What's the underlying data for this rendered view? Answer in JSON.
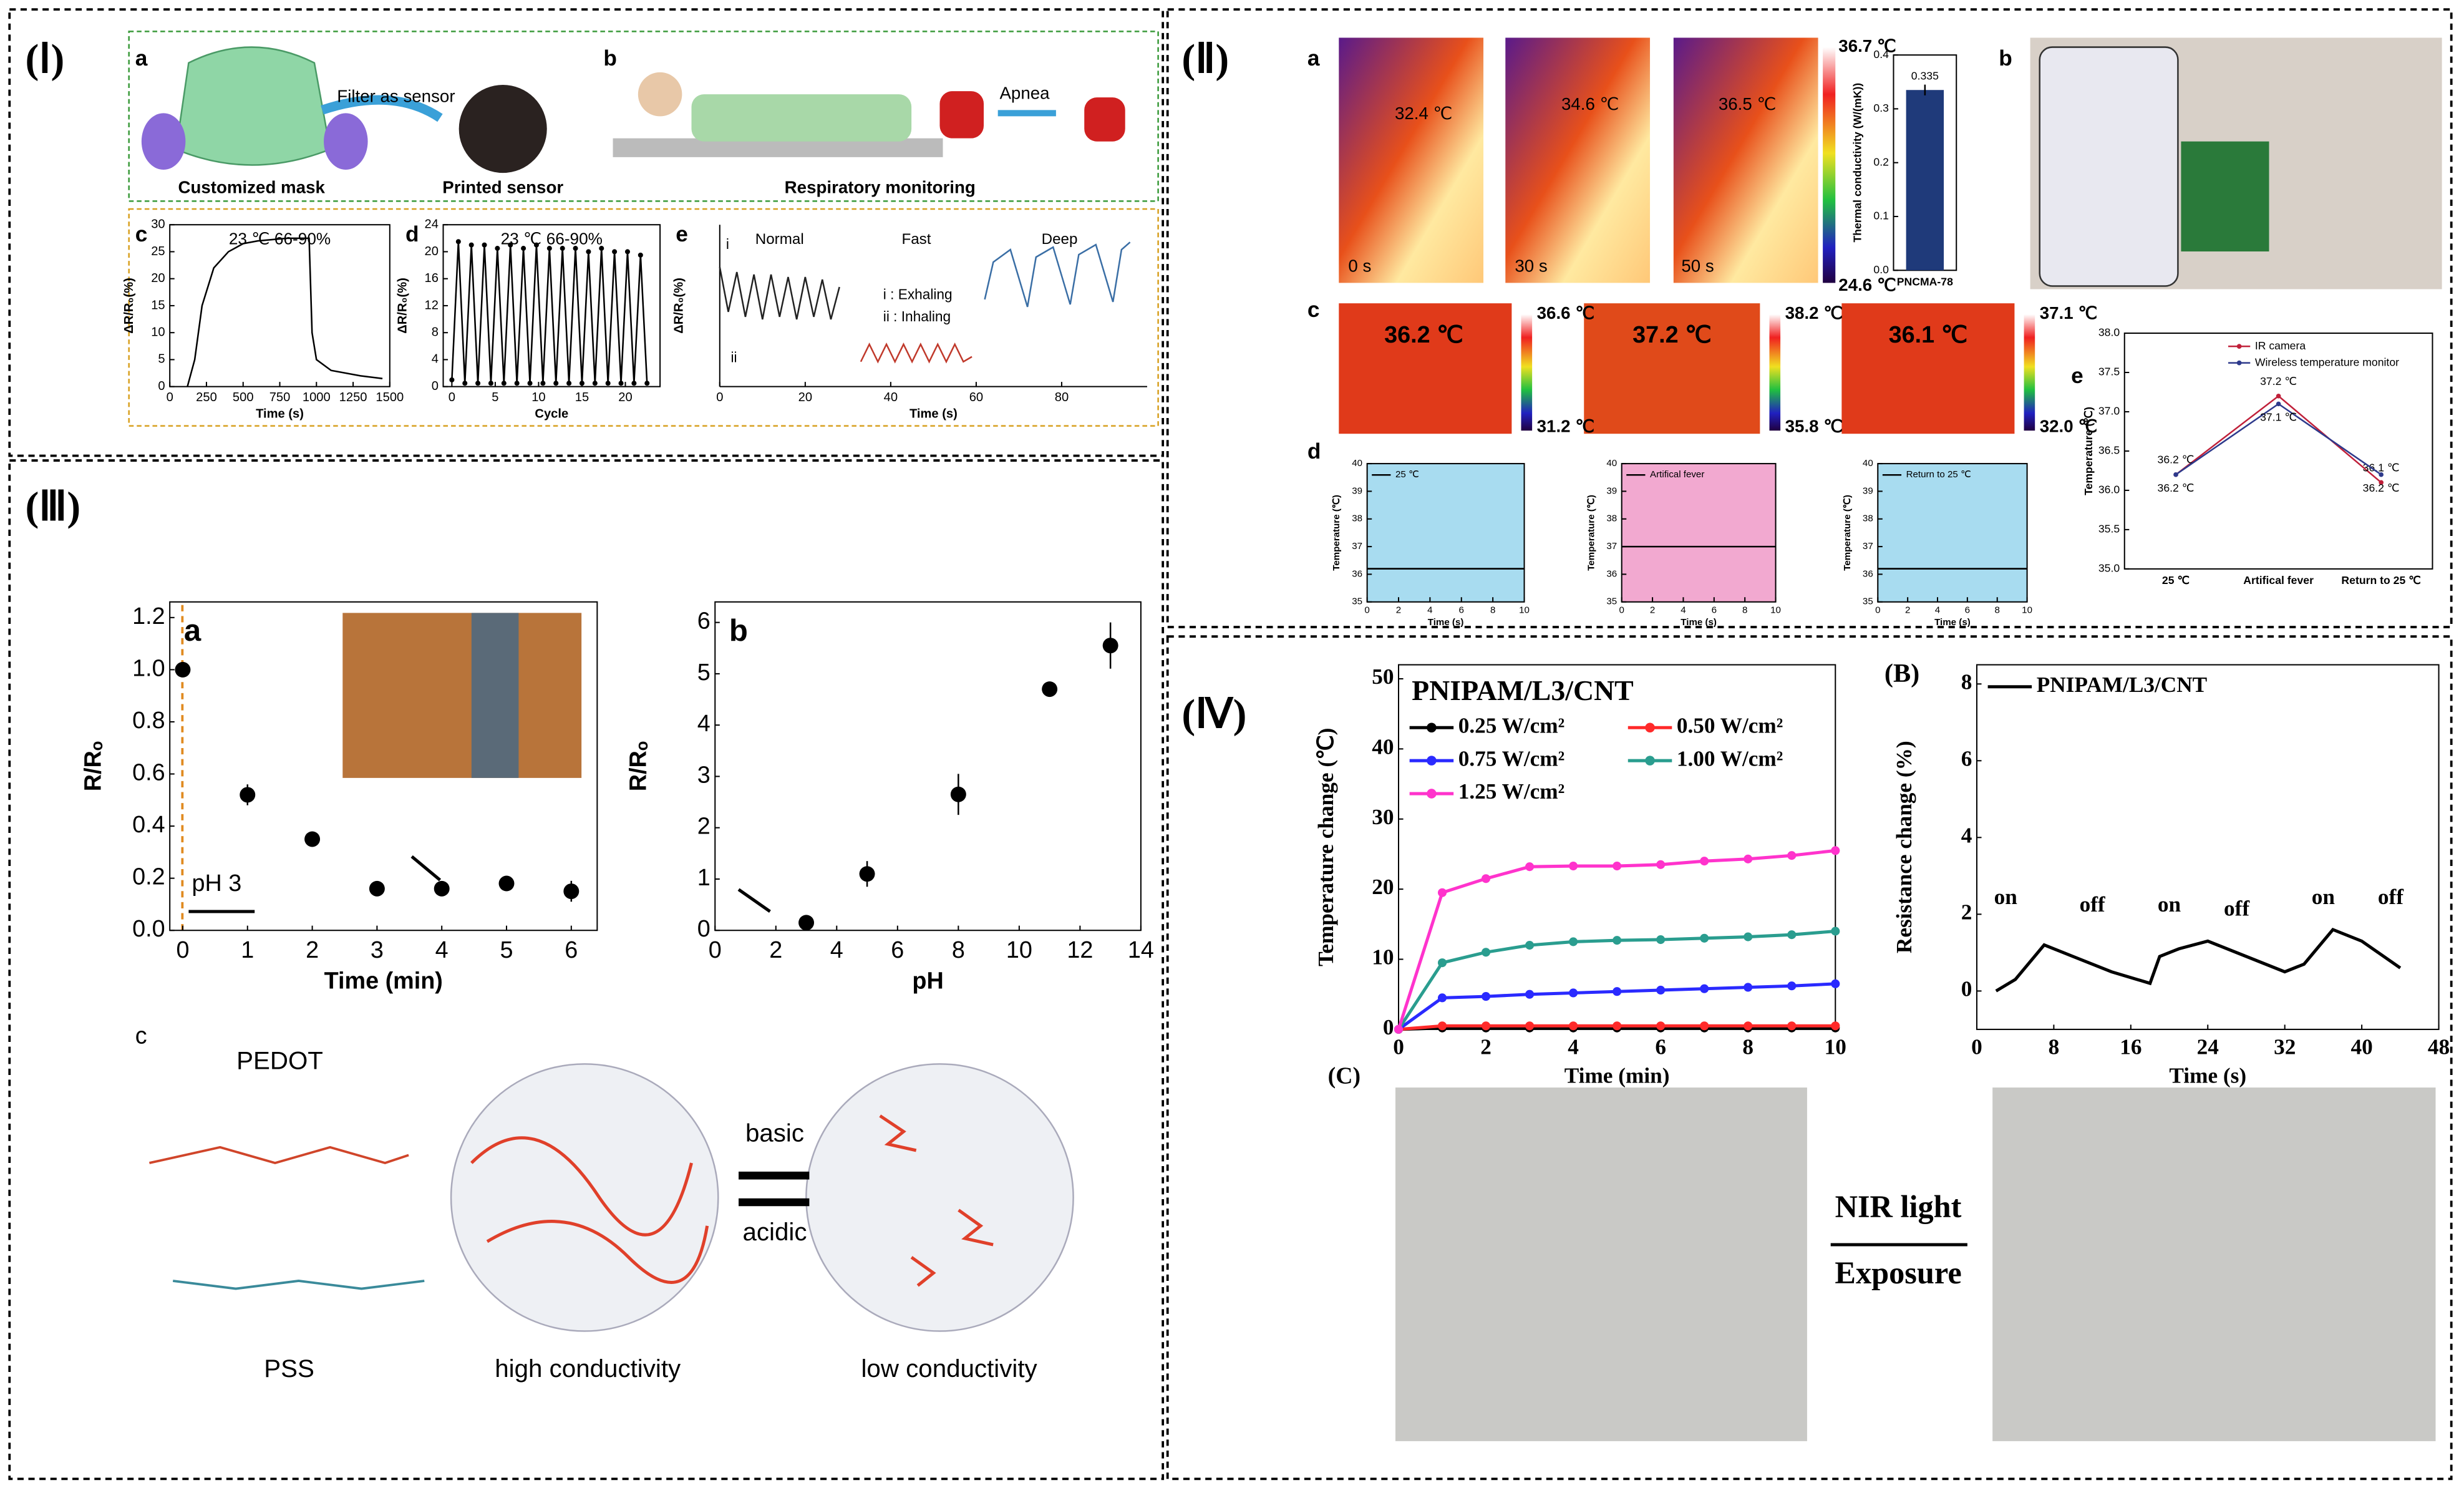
{
  "text": {
    "sections": [
      "(Ⅰ)",
      "(Ⅱ)",
      "(Ⅲ)",
      "(Ⅳ)"
    ],
    "I": {
      "a": "a",
      "b": "b",
      "c": "c",
      "d": "d",
      "e": "e",
      "filter": "Filter as sensor",
      "mask": "Customized mask",
      "sensor": "Printed sensor",
      "apnea": "Apnea",
      "resp": "Respiratory monitoring",
      "exhaling": "i : Exhaling",
      "inhaling": "ii : Inhaling",
      "i": "i",
      "ii": "ii"
    },
    "II": {
      "a": "a",
      "b": "b",
      "c": "c",
      "d": "d",
      "e": "e",
      "a_temps": [
        "32.4 ℃",
        "34.6 ℃",
        "36.5 ℃"
      ],
      "a_times": [
        "0 s",
        "30 s",
        "50 s"
      ],
      "a_bar_max": "36.7 ℃",
      "a_bar_min": "24.6 ℃",
      "c_temps": [
        "36.2 ℃",
        "37.2 ℃",
        "36.1 ℃"
      ],
      "c_bar_max": [
        "36.6 ℃",
        "38.2 ℃",
        "37.1 ℃"
      ],
      "c_bar_min": [
        "31.2 ℃",
        "35.8 ℃",
        "32.0 ℃"
      ]
    },
    "III": {
      "c": "c",
      "ph3": "pH 3",
      "pedot": "PEDOT",
      "pss": "PSS",
      "basic": "basic",
      "acidic": "acidic",
      "high": "high conductivity",
      "low": "low conductivity"
    },
    "IV": {
      "C": "(C)",
      "nir": "NIR light",
      "exposure": "Exposure"
    }
  },
  "chart_data": [
    {
      "type": "line",
      "title": "23 ℃ 66-90%",
      "xlabel": "Time (s)",
      "ylabel": "ΔR/R₀(%)",
      "x": [
        120,
        170,
        220,
        300,
        400,
        500,
        600,
        800,
        950,
        970,
        1000,
        1100,
        1300,
        1450
      ],
      "xlim": [
        0,
        1500
      ],
      "xticks": [
        0,
        250,
        500,
        750,
        1000,
        1250,
        1500
      ],
      "ylim": [
        0,
        30
      ],
      "yticks": [
        0,
        5,
        10,
        15,
        20,
        25,
        30
      ],
      "series": [
        {
          "color": "#000000",
          "values": [
            0,
            5,
            15,
            22,
            25,
            26.5,
            27,
            27.5,
            27.5,
            10,
            5,
            3,
            2,
            1.5
          ]
        }
      ]
    },
    {
      "type": "line",
      "title": "23 ℃ 66-90%",
      "xlabel": "Cycle",
      "ylabel": "ΔR/R₀(%)",
      "markers": true,
      "x": [
        0,
        0.75,
        1.5,
        2.25,
        3,
        3.75,
        4.5,
        5.25,
        6,
        6.75,
        7.5,
        8.25,
        9,
        9.75,
        10.5,
        11.25,
        12,
        12.75,
        13.5,
        14.25,
        15,
        15.75,
        16.5,
        17.25,
        18,
        18.75,
        19.5,
        20.25,
        21,
        21.75,
        22.5
      ],
      "xlim": [
        -1,
        24
      ],
      "xticks": [
        0,
        5,
        10,
        15,
        20
      ],
      "ylim": [
        0,
        24
      ],
      "yticks": [
        0,
        4,
        8,
        12,
        16,
        20,
        24
      ],
      "series": [
        {
          "color": "#000000",
          "values": [
            1,
            21.5,
            0.5,
            21,
            0.5,
            21,
            0.5,
            20.5,
            0.5,
            21,
            0.5,
            20.5,
            0.5,
            21,
            0.5,
            20.5,
            0.5,
            20.5,
            0.5,
            20.5,
            0.5,
            20,
            0.5,
            20.5,
            0.5,
            20,
            0.5,
            20,
            0.5,
            19.5,
            0.5
          ]
        }
      ]
    },
    {
      "type": "line",
      "xlabel": "Time (s)",
      "ylabel": "ΔR/R₀(%)",
      "legend": "inline",
      "xlim": [
        0,
        100
      ],
      "xticks": [
        0,
        20,
        40,
        60,
        80
      ],
      "ylim": [
        0,
        65
      ],
      "series": [
        {
          "name": "Normal",
          "color": "#222222",
          "x": [
            0,
            2,
            4,
            6,
            8,
            10,
            12,
            14,
            16,
            18,
            20,
            22,
            24,
            26,
            28
          ],
          "values": [
            48,
            30,
            46,
            28,
            45,
            27,
            45,
            28,
            44,
            27,
            44,
            28,
            43,
            27,
            40
          ]
        },
        {
          "name": "Fast",
          "color": "#c0392b",
          "x": [
            33,
            35,
            37,
            39,
            41,
            43,
            45,
            47,
            49,
            51,
            53,
            55,
            57,
            59
          ],
          "values": [
            10,
            17,
            10,
            17,
            10,
            17,
            10,
            17,
            10,
            17,
            10,
            17,
            10,
            12
          ]
        },
        {
          "name": "Deep",
          "color": "#3a6ea5",
          "x": [
            62,
            64,
            68,
            72,
            74,
            78,
            82,
            84,
            88,
            92,
            94,
            96
          ],
          "values": [
            35,
            50,
            55,
            32,
            52,
            56,
            33,
            53,
            57,
            34,
            55,
            58
          ]
        }
      ]
    },
    {
      "type": "bar",
      "ylabel": "Thermal conductivity (W/(mK))",
      "categories": [
        "PNCMA-78"
      ],
      "color": "#1f3a7a",
      "values": [
        0.335
      ],
      "errors": [
        0.01
      ],
      "value_labels": [
        "0.335"
      ],
      "ylim": [
        0,
        0.4
      ],
      "yticks": [
        {
          "value": 0,
          "label": "0.0"
        },
        0.1,
        0.2,
        0.3,
        0.4
      ]
    },
    {
      "type": "line",
      "xlabel": "Time (s)",
      "ylabel": "Temperature (℃)",
      "fill": "#a8dcf0",
      "legend": "upper left",
      "x": [
        0,
        10
      ],
      "xlim": [
        0,
        10
      ],
      "xticks": [
        0,
        2,
        4,
        6,
        8,
        10
      ],
      "ylim": [
        35,
        40
      ],
      "yticks": [
        35,
        36,
        37,
        38,
        39,
        40
      ],
      "series": [
        {
          "name": "25 ℃",
          "color": "#000000",
          "values": [
            36.2,
            36.2
          ]
        }
      ]
    },
    {
      "type": "line",
      "xlabel": "Time (s)",
      "ylabel": "Temperature (℃)",
      "fill": "#f2a9d0",
      "legend": "upper left",
      "x": [
        0,
        10
      ],
      "xlim": [
        0,
        10
      ],
      "xticks": [
        0,
        2,
        4,
        6,
        8,
        10
      ],
      "ylim": [
        35,
        40
      ],
      "yticks": [
        35,
        36,
        37,
        38,
        39,
        40
      ],
      "series": [
        {
          "name": "Artifical fever",
          "color": "#000000",
          "values": [
            37,
            37
          ]
        }
      ]
    },
    {
      "type": "line",
      "xlabel": "Time (s)",
      "ylabel": "Temperature (℃)",
      "fill": "#a8dcf0",
      "legend": "upper left",
      "x": [
        0,
        10
      ],
      "xlim": [
        0,
        10
      ],
      "xticks": [
        0,
        2,
        4,
        6,
        8,
        10
      ],
      "ylim": [
        35,
        40
      ],
      "yticks": [
        35,
        36,
        37,
        38,
        39,
        40
      ],
      "series": [
        {
          "name": "Return to 25 ℃",
          "color": "#000000",
          "values": [
            36.2,
            36.2
          ]
        }
      ]
    },
    {
      "type": "line",
      "ylabel": "Temperature (℃)",
      "legend": "upper right",
      "markers": true,
      "categories": [
        "25 ℃",
        "Artifical fever",
        "Return to 25 ℃"
      ],
      "ylim": [
        35,
        38
      ],
      "yticks": [
        {
          "value": 35,
          "label": "35.0"
        },
        35.5,
        {
          "value": 36,
          "label": "36.0"
        },
        36.5,
        {
          "value": 37,
          "label": "37.0"
        },
        37.5,
        {
          "value": 38,
          "label": "38.0"
        }
      ],
      "series": [
        {
          "name": "IR camera",
          "color": "#c0203a",
          "values": [
            36.2,
            37.2,
            36.1
          ],
          "value_labels": [
            "36.2 ℃",
            "37.2 ℃",
            "36.1 ℃"
          ]
        },
        {
          "name": "Wireless temperature monitor",
          "color": "#2e3a8c",
          "values": [
            36.2,
            37.1,
            36.2
          ],
          "value_labels": [
            "36.2 ℃",
            "37.1 ℃",
            "36.2 ℃"
          ]
        }
      ]
    },
    {
      "type": "scatter",
      "title": "a",
      "xlabel": "Time (min)",
      "ylabel": "R/Rₒ",
      "x": [
        0,
        1,
        2,
        3,
        4,
        5,
        6
      ],
      "xlim": [
        -0.2,
        6.4
      ],
      "xticks": [
        0,
        1,
        2,
        3,
        4,
        5,
        6
      ],
      "ylim": [
        0,
        1.26
      ],
      "yticks": [
        {
          "value": 0,
          "label": "0.0"
        },
        0.2,
        0.4,
        0.6,
        0.8,
        {
          "value": 1,
          "label": "1.0"
        },
        1.2
      ],
      "series": [
        {
          "color": "#000000",
          "values": [
            1.0,
            0.52,
            0.35,
            0.16,
            0.16,
            0.18,
            0.15
          ],
          "errors": [
            0.02,
            0.04,
            0.02,
            0.02,
            0.02,
            0.02,
            0.04
          ]
        }
      ]
    },
    {
      "type": "scatter",
      "title": "b",
      "xlabel": "pH",
      "ylabel": "R/Rₒ",
      "x": [
        3,
        5,
        8,
        11,
        13
      ],
      "xlim": [
        0,
        14
      ],
      "xticks": [
        0,
        2,
        4,
        6,
        8,
        10,
        12,
        14
      ],
      "ylim": [
        0,
        6.4
      ],
      "yticks": [
        0,
        1,
        2,
        3,
        4,
        5,
        6
      ],
      "series": [
        {
          "color": "#000000",
          "values": [
            0.15,
            1.1,
            2.65,
            4.7,
            5.55
          ],
          "errors": [
            0.05,
            0.25,
            0.4,
            0.05,
            0.45
          ]
        }
      ]
    },
    {
      "type": "line",
      "title": "PNIPAM/L3/CNT",
      "xlabel": "Time (min)",
      "ylabel": "Temperature change (℃)",
      "legend": "upper left",
      "markers": true,
      "x": [
        0,
        1,
        2,
        3,
        4,
        5,
        6,
        7,
        8,
        9,
        10
      ],
      "xlim": [
        0,
        10
      ],
      "xticks": [
        0,
        2,
        4,
        6,
        8,
        10
      ],
      "ylim": [
        0,
        52
      ],
      "yticks": [
        0,
        10,
        20,
        30,
        40,
        50
      ],
      "series": [
        {
          "name": "0.25 W/cm²",
          "color": "#000000",
          "values": [
            0,
            0.2,
            0.2,
            0.2,
            0.2,
            0.2,
            0.2,
            0.2,
            0.2,
            0.2,
            0.2
          ]
        },
        {
          "name": "0.50 W/cm²",
          "color": "#ff2a2a",
          "values": [
            0,
            0.5,
            0.5,
            0.5,
            0.5,
            0.5,
            0.5,
            0.5,
            0.5,
            0.5,
            0.5
          ]
        },
        {
          "name": "0.75 W/cm²",
          "color": "#2a2aff",
          "values": [
            0,
            4.5,
            4.7,
            5,
            5.2,
            5.4,
            5.6,
            5.8,
            6,
            6.2,
            6.5
          ]
        },
        {
          "name": "1.00 W/cm²",
          "color": "#2a9d8f",
          "values": [
            0,
            9.5,
            11,
            12,
            12.5,
            12.7,
            12.8,
            13,
            13.2,
            13.5,
            14
          ]
        },
        {
          "name": "1.25 W/cm²",
          "color": "#ff33cc",
          "values": [
            0,
            19.5,
            21.5,
            23.2,
            23.3,
            23.3,
            23.5,
            24,
            24.3,
            24.8,
            25.5
          ]
        }
      ]
    },
    {
      "type": "line",
      "title": "(B)",
      "xlabel": "Time (s)",
      "ylabel": "Resistance change (%)",
      "legend": "upper left",
      "annotations": [
        "on",
        "off",
        "on",
        "off",
        "on",
        "off"
      ],
      "x": [
        2,
        4,
        7,
        10,
        14,
        18,
        19,
        21,
        24,
        27,
        32,
        34,
        37,
        40,
        44
      ],
      "xlim": [
        0,
        48
      ],
      "xticks": [
        0,
        8,
        16,
        24,
        32,
        40,
        48
      ],
      "ylim": [
        -1,
        8.5
      ],
      "yticks": [
        0,
        2,
        4,
        6,
        8
      ],
      "series": [
        {
          "name": "PNIPAM/L3/CNT",
          "color": "#000000",
          "values": [
            0,
            0.3,
            1.2,
            0.9,
            0.5,
            0.2,
            0.9,
            1.1,
            1.3,
            1.0,
            0.5,
            0.7,
            1.6,
            1.3,
            0.6
          ]
        }
      ]
    }
  ]
}
